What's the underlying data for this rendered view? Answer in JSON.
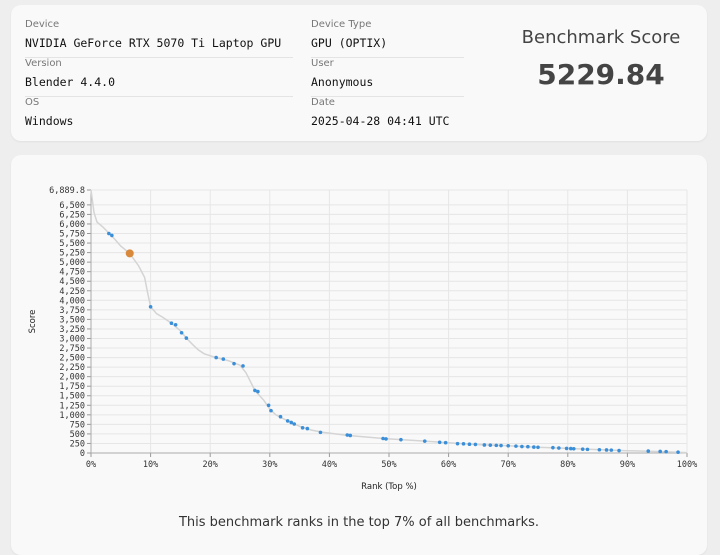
{
  "info": {
    "device_label": "Device",
    "device_value": "NVIDIA GeForce RTX 5070 Ti Laptop GPU",
    "version_label": "Version",
    "version_value": "Blender 4.4.0",
    "os_label": "OS",
    "os_value": "Windows",
    "device_type_label": "Device Type",
    "device_type_value": "GPU (OPTIX)",
    "user_label": "User",
    "user_value": "Anonymous",
    "date_label": "Date",
    "date_value": "2025-04-28 04:41 UTC"
  },
  "score": {
    "title": "Benchmark Score",
    "value": "5229.84"
  },
  "caption": "This benchmark ranks in the top 7% of all benchmarks.",
  "colors": {
    "point": "#3b8fd9",
    "highlight": "#d9893b",
    "curve": "#d4d4d4",
    "grid": "#e6e6e6"
  },
  "chart_data": {
    "type": "scatter",
    "xlabel": "Rank (Top %)",
    "ylabel": "Score",
    "xlim": [
      0,
      100
    ],
    "ylim": [
      0,
      6889.8
    ],
    "x_ticks": [
      "0%",
      "10%",
      "20%",
      "30%",
      "40%",
      "50%",
      "60%",
      "70%",
      "80%",
      "90%",
      "100%"
    ],
    "y_ticks": [
      "0",
      "250",
      "500",
      "750",
      "1,000",
      "1,250",
      "1,500",
      "1,750",
      "2,000",
      "2,250",
      "2,500",
      "2,750",
      "3,000",
      "3,250",
      "3,500",
      "3,750",
      "4,000",
      "4,250",
      "4,500",
      "4,750",
      "5,000",
      "5,250",
      "5,500",
      "5,750",
      "6,000",
      "6,250",
      "6,500",
      "6,889.8"
    ],
    "y_tick_values": [
      0,
      250,
      500,
      750,
      1000,
      1250,
      1500,
      1750,
      2000,
      2250,
      2500,
      2750,
      3000,
      3250,
      3500,
      3750,
      4000,
      4250,
      4500,
      4750,
      5000,
      5250,
      5500,
      5750,
      6000,
      6250,
      6500,
      6889.8
    ],
    "grid": true,
    "highlight": {
      "x": 6.5,
      "y": 5229.84
    },
    "points": [
      [
        3,
        5750
      ],
      [
        3.5,
        5700
      ],
      [
        10,
        3830
      ],
      [
        13.5,
        3400
      ],
      [
        14.2,
        3360
      ],
      [
        15.2,
        3150
      ],
      [
        16,
        3010
      ],
      [
        21,
        2500
      ],
      [
        22.2,
        2460
      ],
      [
        24,
        2340
      ],
      [
        25.5,
        2280
      ],
      [
        27.5,
        1640
      ],
      [
        28,
        1610
      ],
      [
        29.8,
        1250
      ],
      [
        30.2,
        1110
      ],
      [
        31.8,
        950
      ],
      [
        33,
        840
      ],
      [
        33.6,
        800
      ],
      [
        34.1,
        760
      ],
      [
        35.5,
        660
      ],
      [
        36.3,
        640
      ],
      [
        38.5,
        540
      ],
      [
        43,
        470
      ],
      [
        43.5,
        460
      ],
      [
        49,
        380
      ],
      [
        49.5,
        370
      ],
      [
        52,
        350
      ],
      [
        56,
        310
      ],
      [
        58.5,
        280
      ],
      [
        59.5,
        270
      ],
      [
        61.5,
        245
      ],
      [
        62.5,
        240
      ],
      [
        63.5,
        230
      ],
      [
        64.5,
        225
      ],
      [
        66,
        210
      ],
      [
        67,
        205
      ],
      [
        68,
        200
      ],
      [
        68.8,
        195
      ],
      [
        70,
        190
      ],
      [
        71.3,
        180
      ],
      [
        72.3,
        170
      ],
      [
        73.3,
        165
      ],
      [
        74.3,
        155
      ],
      [
        75,
        150
      ],
      [
        77.5,
        140
      ],
      [
        78.5,
        130
      ],
      [
        79.8,
        120
      ],
      [
        80.5,
        115
      ],
      [
        81,
        110
      ],
      [
        82.5,
        100
      ],
      [
        83.3,
        95
      ],
      [
        85.3,
        85
      ],
      [
        86.5,
        80
      ],
      [
        87.3,
        75
      ],
      [
        88.6,
        65
      ],
      [
        93.5,
        50
      ],
      [
        95.5,
        40
      ],
      [
        96.5,
        35
      ],
      [
        98.5,
        20
      ]
    ],
    "curve": [
      [
        0,
        6889.8
      ],
      [
        0.5,
        6300
      ],
      [
        1,
        6050
      ],
      [
        2,
        5920
      ],
      [
        3,
        5760
      ],
      [
        4,
        5600
      ],
      [
        5,
        5420
      ],
      [
        6.5,
        5230
      ],
      [
        8,
        4900
      ],
      [
        9,
        4600
      ],
      [
        9.5,
        4200
      ],
      [
        10,
        3830
      ],
      [
        11,
        3650
      ],
      [
        12,
        3560
      ],
      [
        13.5,
        3400
      ],
      [
        15,
        3200
      ],
      [
        16,
        3010
      ],
      [
        17,
        2850
      ],
      [
        18,
        2700
      ],
      [
        19,
        2600
      ],
      [
        21,
        2500
      ],
      [
        23,
        2420
      ],
      [
        25,
        2300
      ],
      [
        26,
        2100
      ],
      [
        27.5,
        1640
      ],
      [
        29,
        1380
      ],
      [
        30,
        1150
      ],
      [
        31,
        1000
      ],
      [
        33,
        840
      ],
      [
        35,
        700
      ],
      [
        37,
        600
      ],
      [
        39,
        540
      ],
      [
        43,
        460
      ],
      [
        49,
        380
      ],
      [
        55,
        320
      ],
      [
        60,
        270
      ],
      [
        65,
        220
      ],
      [
        70,
        190
      ],
      [
        75,
        150
      ],
      [
        80,
        120
      ],
      [
        85,
        90
      ],
      [
        90,
        60
      ],
      [
        95,
        40
      ],
      [
        100,
        10
      ]
    ]
  }
}
